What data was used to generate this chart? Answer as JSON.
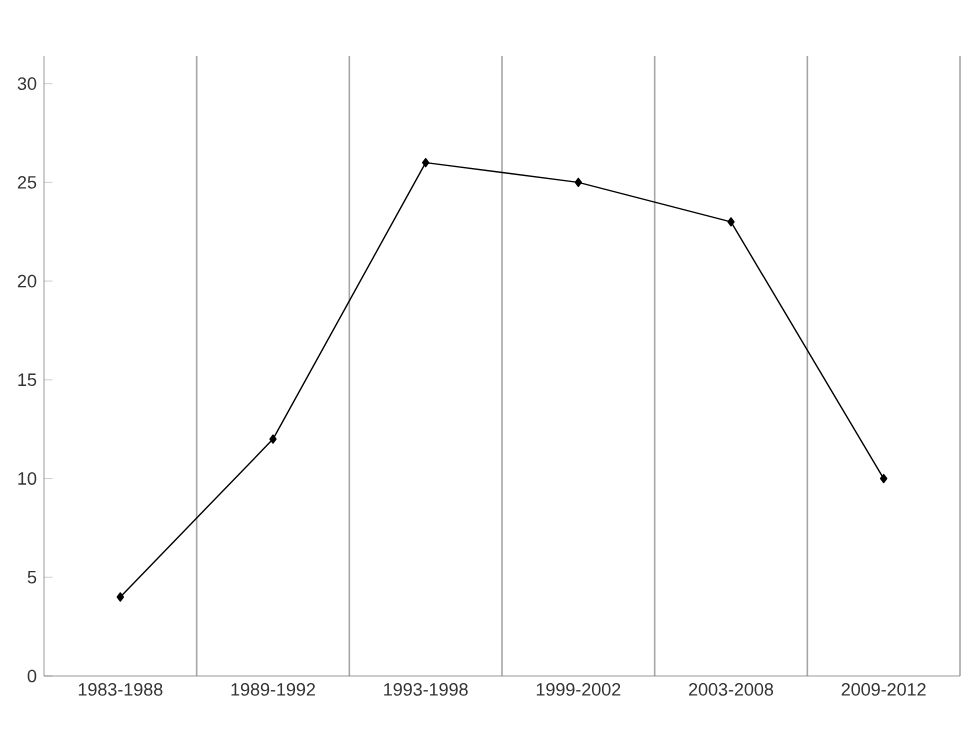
{
  "chart_data": {
    "type": "line",
    "categories": [
      "1983-1988",
      "1989-1992",
      "1993-1998",
      "1999-2002",
      "2003-2008",
      "2009-2012"
    ],
    "values": [
      4,
      12,
      26,
      25,
      23,
      10
    ],
    "color": "#000000",
    "ylim": [
      0,
      31.4
    ],
    "yticks": [
      0,
      5,
      10,
      15,
      20,
      25,
      30
    ],
    "grid": "x",
    "marker": "diamond",
    "line_style": "solid"
  }
}
